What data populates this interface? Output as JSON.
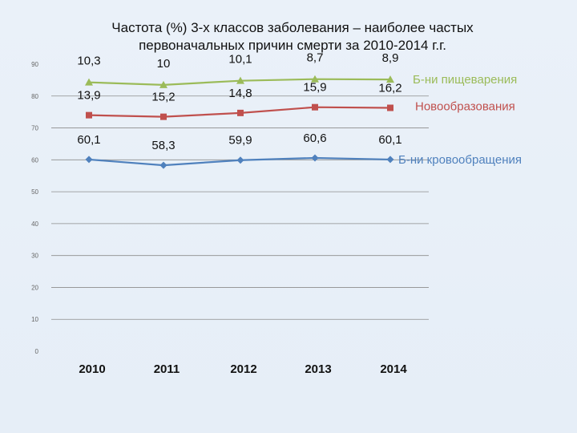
{
  "title_line1": "Частота (%) 3-х  классов заболевания – наиболее частых",
  "title_line2": "первоначальных причин смерти за 2010-2014 г.г.",
  "chart_data": {
    "type": "line",
    "title": "Частота (%) 3-х  классов заболевания – наиболее частых первоначальных причин смерти за 2010-2014 г.г.",
    "categories": [
      "2010",
      "2011",
      "2012",
      "2013",
      "2014"
    ],
    "ylim": [
      0,
      90
    ],
    "yticks": [
      0,
      10,
      20,
      30,
      40,
      50,
      60,
      70,
      80,
      90
    ],
    "grid": true,
    "legend": "right, at line ends",
    "series": [
      {
        "name": "Б-ни пищеварения",
        "color": "#9bbb59",
        "marker": "triangle",
        "values": [
          84.3,
          83.5,
          84.8,
          85.3,
          85.2
        ],
        "labels": [
          "10,3",
          "10",
          "10,1",
          "8,7",
          "8,9"
        ]
      },
      {
        "name": "Новообразования",
        "color": "#c0504d",
        "marker": "square",
        "values": [
          74.0,
          73.5,
          74.7,
          76.5,
          76.3
        ],
        "labels": [
          "13,9",
          "15,2",
          "14,8",
          "15,9",
          "16,2"
        ]
      },
      {
        "name": "Б-ни кровообращения",
        "color": "#4f81bd",
        "marker": "diamond",
        "values": [
          60.1,
          58.3,
          59.9,
          60.6,
          60.1
        ],
        "labels": [
          "60,1",
          "58,3",
          "59,9",
          "60,6",
          "60,1"
        ]
      }
    ]
  }
}
